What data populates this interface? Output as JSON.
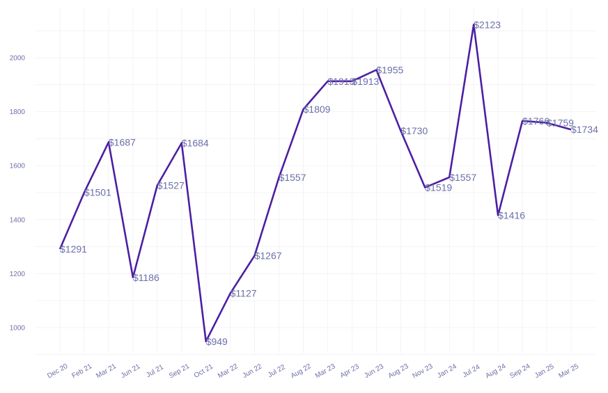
{
  "chart_data": {
    "type": "line",
    "title": "",
    "xlabel": "",
    "ylabel": "",
    "ylim": [
      900,
      2150
    ],
    "yticks": [
      1000,
      1200,
      1400,
      1600,
      1800,
      2000
    ],
    "grid": true,
    "legend": "none",
    "line_color": "#4b1fa3",
    "categories": [
      "Dec 20",
      "Feb 21",
      "Mar 21",
      "Jun 21",
      "Jul 21",
      "Sep 21",
      "Oct 21",
      "Mar 22",
      "Jun 22",
      "Jul 22",
      "Aug 22",
      "Mar 23",
      "Apr 23",
      "Jun 23",
      "Aug 23",
      "Nov 23",
      "Jan 24",
      "Jul 24",
      "Aug 24",
      "Sep 24",
      "Jan 25",
      "Mar 25"
    ],
    "values": [
      1291,
      1501,
      1687,
      1186,
      1527,
      1684,
      949,
      1127,
      1267,
      1557,
      1809,
      1913,
      1913,
      1955,
      1730,
      1519,
      1557,
      2123,
      1416,
      1766,
      1759,
      1734
    ],
    "labels": [
      "$1291",
      "$1501",
      "$1687",
      "$1186",
      "$1527",
      "$1684",
      "$949",
      "$1127",
      "$1267",
      "$1557",
      "$1809",
      "$1913",
      "$1913",
      "$1955",
      "$1730",
      "$1519",
      "$1557",
      "$2123",
      "$1416",
      "$1766",
      "$1759",
      "$1734"
    ]
  }
}
